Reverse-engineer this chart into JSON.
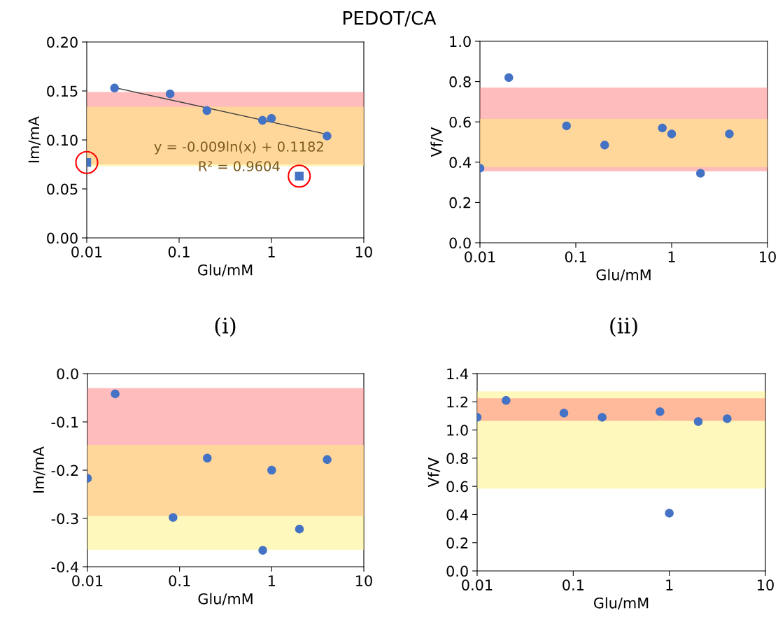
{
  "chart_data": [
    {
      "type": "scatter",
      "title": "PEDOT/CA",
      "xlabel": "Glu/mM",
      "ylabel": "Im/mA",
      "log": "x",
      "marker": "circle",
      "grid": false,
      "xlim": [
        0.01,
        10
      ],
      "xticks": [
        0.01,
        0.1,
        1,
        10
      ],
      "ylim": [
        0,
        0.2
      ],
      "yticks": [
        {
          "value": 0,
          "label": "0.00"
        },
        {
          "value": 0.05,
          "label": "0.05"
        },
        {
          "value": 0.1,
          "label": "0.10"
        },
        {
          "value": 0.15,
          "label": "0.15"
        },
        {
          "value": 0.2,
          "label": "0.20"
        }
      ],
      "series": [
        {
          "color": "#4472c4",
          "x": [
            0.02,
            0.08,
            0.2,
            0.8,
            1,
            4
          ],
          "values": [
            0.153,
            0.147,
            0.13,
            0.12,
            0.122,
            0.104
          ]
        },
        {
          "color": "#4472c4",
          "marker": "square",
          "x": [
            0.01,
            2
          ],
          "values": [
            0.077,
            0.063
          ]
        },
        {
          "type": "line",
          "marker": "none",
          "color": "#404040",
          "x": [
            0.02,
            4
          ],
          "values": [
            0.1534,
            0.1057
          ]
        }
      ],
      "bands": [
        {
          "axis": "y",
          "from": 0.075,
          "to": 0.149,
          "color": "#ff7a7a"
        },
        {
          "axis": "y",
          "from": 0.073,
          "to": 0.134,
          "color": "#fff27a"
        }
      ],
      "annotations": [
        "y = -0.009ln(x) + 0.1182",
        "R² = 0.9604",
        "(i)"
      ]
    },
    {
      "type": "scatter",
      "xlabel": "Glu/mM",
      "ylabel": "Vf/V",
      "log": "x",
      "marker": "circle",
      "grid": false,
      "xlim": [
        0.01,
        10
      ],
      "xticks": [
        0.01,
        0.1,
        1,
        10
      ],
      "ylim": [
        0,
        1.0
      ],
      "yticks": [
        {
          "value": 0,
          "label": "0.0"
        },
        {
          "value": 0.2,
          "label": "0.2"
        },
        {
          "value": 0.4,
          "label": "0.4"
        },
        {
          "value": 0.6,
          "label": "0.6"
        },
        {
          "value": 0.8,
          "label": "0.8"
        },
        {
          "value": 1.0,
          "label": "1.0"
        }
      ],
      "series": [
        {
          "color": "#4472c4",
          "x": [
            0.01,
            0.02,
            0.08,
            0.2,
            0.8,
            1,
            2,
            4
          ],
          "values": [
            0.37,
            0.82,
            0.58,
            0.485,
            0.57,
            0.54,
            0.345,
            0.54
          ]
        }
      ],
      "bands": [
        {
          "axis": "y",
          "from": 0.355,
          "to": 0.77,
          "color": "#ff7a7a"
        },
        {
          "axis": "y",
          "from": 0.375,
          "to": 0.615,
          "color": "#fff27a"
        }
      ],
      "annotations": [
        "(ii)"
      ]
    },
    {
      "type": "scatter",
      "xlabel": "Glu/mM",
      "ylabel": "Im/mA",
      "log": "x",
      "marker": "circle",
      "grid": false,
      "xlim": [
        0.01,
        10
      ],
      "xticks": [
        0.01,
        0.1,
        1,
        10
      ],
      "ylim": [
        -0.4,
        0
      ],
      "yticks": [
        {
          "value": -0.4,
          "label": "-0.4"
        },
        {
          "value": -0.3,
          "label": "-0.3"
        },
        {
          "value": -0.2,
          "label": "-0.2"
        },
        {
          "value": -0.1,
          "label": "-0.1"
        },
        {
          "value": 0,
          "label": "0.0"
        }
      ],
      "series": [
        {
          "color": "#4472c4",
          "x": [
            0.01,
            0.02,
            0.085,
            0.2,
            0.8,
            1,
            2,
            4
          ],
          "values": [
            -0.217,
            -0.042,
            -0.298,
            -0.175,
            -0.366,
            -0.2,
            -0.322,
            -0.178
          ]
        }
      ],
      "bands": [
        {
          "axis": "y",
          "from": -0.295,
          "to": -0.03,
          "color": "#ff7a7a"
        },
        {
          "axis": "y",
          "from": -0.365,
          "to": -0.148,
          "color": "#fff27a"
        }
      ]
    },
    {
      "type": "scatter",
      "xlabel": "Glu/mM",
      "ylabel": "Vf/V",
      "log": "x",
      "marker": "circle",
      "grid": false,
      "xlim": [
        0.01,
        10
      ],
      "xticks": [
        0.01,
        0.1,
        1,
        10
      ],
      "ylim": [
        0,
        1.4
      ],
      "yticks": [
        {
          "value": 0,
          "label": "0.0"
        },
        {
          "value": 0.2,
          "label": "0.2"
        },
        {
          "value": 0.4,
          "label": "0.4"
        },
        {
          "value": 0.6,
          "label": "0.6"
        },
        {
          "value": 0.8,
          "label": "0.8"
        },
        {
          "value": 1.0,
          "label": "1.0"
        },
        {
          "value": 1.2,
          "label": "1.2"
        },
        {
          "value": 1.4,
          "label": "1.4"
        }
      ],
      "series": [
        {
          "color": "#4472c4",
          "x": [
            0.01,
            0.02,
            0.08,
            0.2,
            0.8,
            1,
            2,
            4
          ],
          "values": [
            1.09,
            1.21,
            1.12,
            1.09,
            1.13,
            0.41,
            1.06,
            1.08
          ]
        }
      ],
      "bands": [
        {
          "axis": "y",
          "from": 0.585,
          "to": 1.275,
          "color": "#fff27a"
        },
        {
          "axis": "y",
          "from": 1.065,
          "to": 1.225,
          "color": "#ff7a7a"
        }
      ]
    }
  ]
}
